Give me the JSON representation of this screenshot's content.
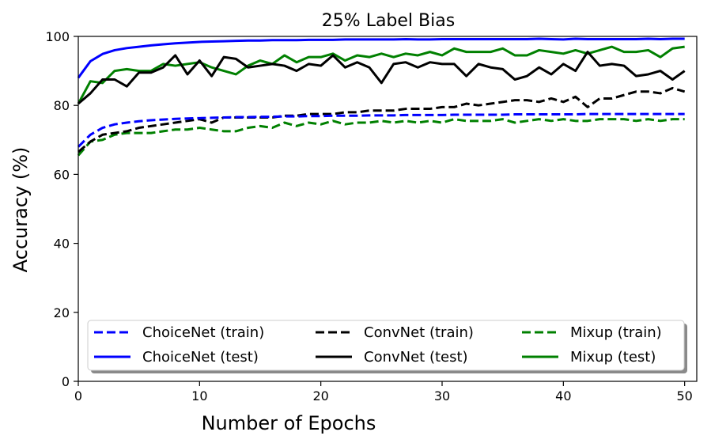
{
  "chart_data": {
    "type": "line",
    "title": "25% Label Bias",
    "xlabel": "Number of Epochs",
    "ylabel": "Accuracy (%)",
    "xlim": [
      0,
      51
    ],
    "ylim": [
      0,
      100
    ],
    "xticks": [
      0,
      10,
      20,
      30,
      40,
      50
    ],
    "yticks": [
      0,
      20,
      40,
      60,
      80,
      100
    ],
    "legend_position": "lower-center",
    "legend_columns": 3,
    "x": [
      0,
      1,
      2,
      3,
      4,
      5,
      6,
      7,
      8,
      9,
      10,
      11,
      12,
      13,
      14,
      15,
      16,
      17,
      18,
      19,
      20,
      21,
      22,
      23,
      24,
      25,
      26,
      27,
      28,
      29,
      30,
      31,
      32,
      33,
      34,
      35,
      36,
      37,
      38,
      39,
      40,
      41,
      42,
      43,
      44,
      45,
      46,
      47,
      48,
      49,
      50
    ],
    "series": [
      {
        "name": "ChoiceNet (train)",
        "color": "#0000ff",
        "dash": "dashed",
        "values": [
          68.0,
          71.5,
          73.5,
          74.5,
          75.0,
          75.4,
          75.7,
          75.9,
          76.1,
          76.2,
          76.3,
          76.4,
          76.5,
          76.6,
          76.6,
          76.7,
          76.7,
          76.8,
          76.8,
          76.9,
          76.9,
          77.0,
          77.0,
          77.0,
          77.1,
          77.1,
          77.1,
          77.2,
          77.2,
          77.2,
          77.2,
          77.3,
          77.3,
          77.3,
          77.3,
          77.3,
          77.4,
          77.4,
          77.4,
          77.4,
          77.4,
          77.4,
          77.5,
          77.5,
          77.5,
          77.5,
          77.5,
          77.5,
          77.5,
          77.5,
          77.5
        ]
      },
      {
        "name": "ChoiceNet (test)",
        "color": "#0000ff",
        "dash": "solid",
        "values": [
          88.0,
          92.8,
          94.9,
          96.0,
          96.6,
          97.0,
          97.4,
          97.7,
          98.0,
          98.2,
          98.4,
          98.5,
          98.6,
          98.7,
          98.8,
          98.8,
          98.9,
          98.9,
          98.9,
          99.0,
          99.0,
          99.0,
          99.1,
          99.1,
          99.1,
          99.1,
          99.1,
          99.2,
          99.1,
          99.1,
          99.2,
          99.2,
          99.2,
          99.2,
          99.2,
          99.2,
          99.2,
          99.2,
          99.3,
          99.2,
          99.1,
          99.3,
          99.2,
          99.2,
          99.2,
          99.2,
          99.2,
          99.3,
          99.2,
          99.3,
          99.3
        ]
      },
      {
        "name": "ConvNet (train)",
        "color": "#000000",
        "dash": "dashed",
        "values": [
          66.5,
          69.5,
          71.5,
          72.0,
          72.5,
          73.5,
          74.0,
          74.5,
          75.0,
          75.5,
          76.0,
          75.0,
          76.5,
          76.5,
          76.5,
          76.5,
          76.5,
          77.0,
          77.0,
          77.5,
          77.5,
          77.5,
          78.0,
          78.0,
          78.5,
          78.5,
          78.5,
          79.0,
          79.0,
          79.0,
          79.5,
          79.5,
          80.5,
          80.0,
          80.5,
          81.0,
          81.5,
          81.5,
          81.0,
          82.0,
          81.0,
          82.5,
          79.5,
          82.0,
          82.0,
          83.0,
          84.0,
          84.0,
          83.5,
          85.0,
          84.0
        ]
      },
      {
        "name": "ConvNet (test)",
        "color": "#000000",
        "dash": "solid",
        "values": [
          80.5,
          83.5,
          87.5,
          87.5,
          85.5,
          89.5,
          89.5,
          91.0,
          94.5,
          89.0,
          93.0,
          88.5,
          94.0,
          93.5,
          91.0,
          91.5,
          92.0,
          91.5,
          90.0,
          92.0,
          91.5,
          94.5,
          91.0,
          92.5,
          91.0,
          86.5,
          92.0,
          92.5,
          91.0,
          92.5,
          92.0,
          92.0,
          88.5,
          92.0,
          91.0,
          90.5,
          87.5,
          88.5,
          91.0,
          89.0,
          92.0,
          90.0,
          95.5,
          91.5,
          92.0,
          91.5,
          88.5,
          89.0,
          90.0,
          87.5,
          90.0
        ]
      },
      {
        "name": "Mixup (train)",
        "color": "#008000",
        "dash": "dashed",
        "values": [
          65.5,
          69.5,
          70.0,
          71.5,
          72.0,
          72.0,
          72.0,
          72.5,
          73.0,
          73.0,
          73.5,
          73.0,
          72.5,
          72.5,
          73.5,
          74.0,
          73.5,
          75.0,
          74.0,
          75.0,
          74.5,
          75.5,
          74.5,
          75.0,
          75.0,
          75.5,
          75.0,
          75.5,
          75.0,
          75.5,
          75.0,
          76.0,
          75.5,
          75.5,
          75.5,
          76.0,
          75.0,
          75.5,
          76.0,
          75.5,
          76.0,
          75.5,
          75.5,
          76.0,
          76.0,
          76.0,
          75.5,
          76.0,
          75.5,
          76.0,
          76.0
        ]
      },
      {
        "name": "Mixup (test)",
        "color": "#008000",
        "dash": "solid",
        "values": [
          80.5,
          87.0,
          86.5,
          90.0,
          90.5,
          90.0,
          90.0,
          92.0,
          91.5,
          92.0,
          92.5,
          91.0,
          90.0,
          89.0,
          91.5,
          93.0,
          92.0,
          94.5,
          92.5,
          94.0,
          94.0,
          95.0,
          93.0,
          94.5,
          94.0,
          95.0,
          94.0,
          95.0,
          94.5,
          95.5,
          94.5,
          96.5,
          95.5,
          95.5,
          95.5,
          96.5,
          94.5,
          94.5,
          96.0,
          95.5,
          95.0,
          96.0,
          95.0,
          96.0,
          97.0,
          95.5,
          95.5,
          96.0,
          94.0,
          96.5,
          97.0
        ]
      }
    ]
  }
}
